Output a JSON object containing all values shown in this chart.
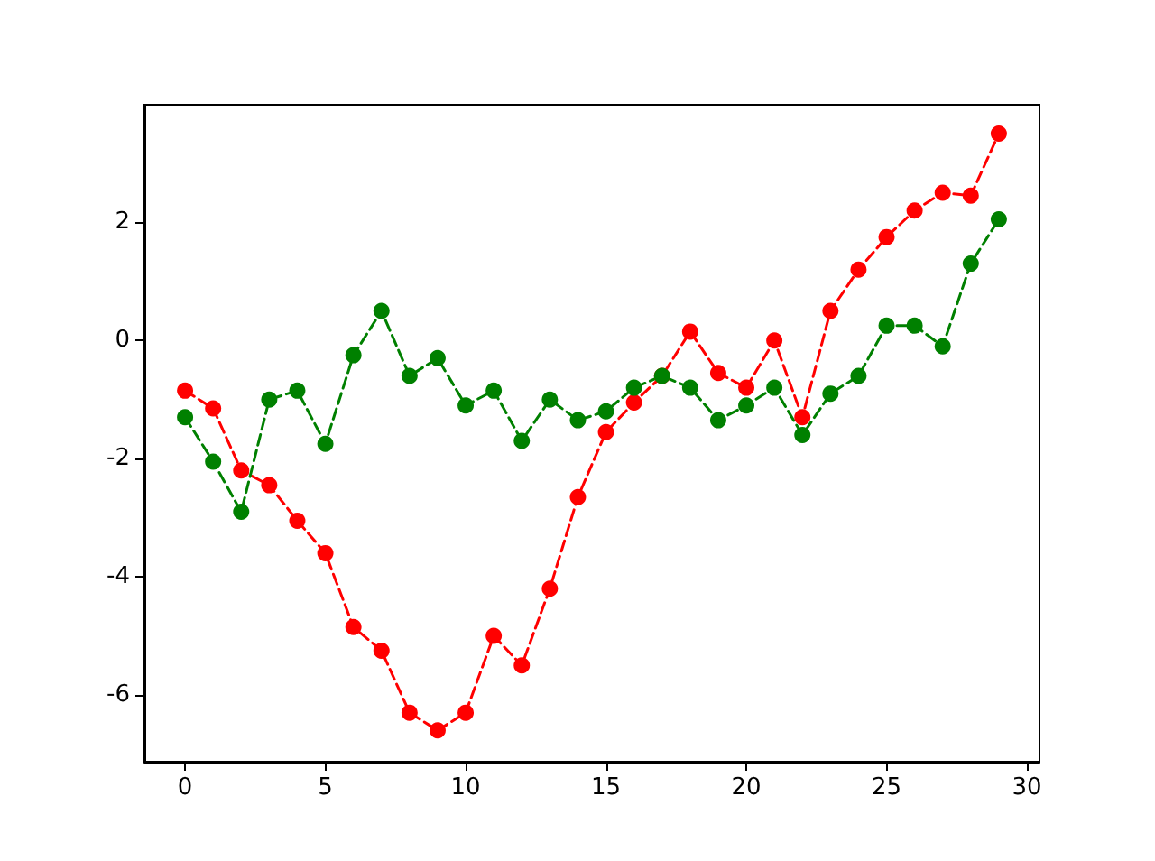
{
  "chart_data": {
    "type": "line",
    "x": [
      0,
      1,
      2,
      3,
      4,
      5,
      6,
      7,
      8,
      9,
      10,
      11,
      12,
      13,
      14,
      15,
      16,
      17,
      18,
      19,
      20,
      21,
      22,
      23,
      24,
      25,
      26,
      27,
      28,
      29
    ],
    "series": [
      {
        "color": "#ff0000",
        "values": [
          -0.85,
          -1.15,
          -2.2,
          -2.45,
          -3.05,
          -3.6,
          -4.85,
          -5.25,
          -6.3,
          -6.6,
          -6.3,
          -5.0,
          -5.5,
          -4.2,
          -2.65,
          -1.55,
          -1.05,
          -0.6,
          0.15,
          -0.55,
          -0.8,
          0.0,
          -1.3,
          0.5,
          1.2,
          1.75,
          2.2,
          2.5,
          2.45,
          3.5
        ]
      },
      {
        "color": "#008000",
        "values": [
          -1.3,
          -2.05,
          -2.9,
          -1.0,
          -0.85,
          -1.75,
          -0.25,
          0.5,
          -0.6,
          -0.3,
          -1.1,
          -0.85,
          -1.7,
          -1.0,
          -1.35,
          -1.2,
          -0.8,
          -0.6,
          -0.8,
          -1.35,
          -1.1,
          -0.8,
          -1.6,
          -0.9,
          -0.6,
          0.25,
          0.25,
          -0.1,
          1.3,
          2.05
        ]
      }
    ],
    "xlim": [
      -1.45,
      30.45
    ],
    "xticks": [
      0,
      5,
      10,
      15,
      20,
      25,
      30
    ],
    "ylim": [
      -7.13,
      3.99
    ],
    "yticks": [
      -6,
      -4,
      -2,
      0,
      2
    ],
    "grid": false,
    "marker": "circle",
    "line_style": "dashed"
  }
}
